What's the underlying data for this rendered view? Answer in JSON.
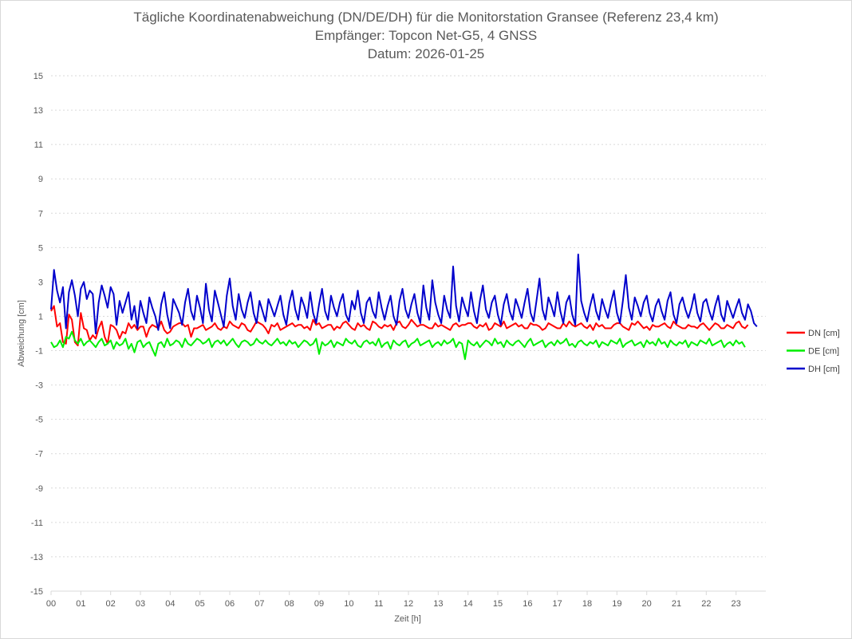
{
  "chart_data": {
    "type": "line",
    "title": "Tägliche Koordinatenabweichung (DN/DE/DH) für die Monitorstation Gransee (Referenz 23,4 km)",
    "subtitle1": "Empfänger: Topcon Net-G5, 4 GNSS",
    "subtitle2": "Datum: 2026-01-25",
    "xlabel": "Zeit [h]",
    "ylabel": "Abweichung [cm]",
    "xlim": [
      0,
      24
    ],
    "ylim": [
      -15,
      15
    ],
    "grid": "horizontal dotted",
    "legend_position": "right",
    "xticks": [
      "00",
      "01",
      "02",
      "03",
      "04",
      "05",
      "06",
      "07",
      "08",
      "09",
      "10",
      "11",
      "12",
      "13",
      "14",
      "15",
      "16",
      "17",
      "18",
      "19",
      "20",
      "21",
      "22",
      "23"
    ],
    "yticks": [
      "15",
      "13",
      "11",
      "9",
      "7",
      "5",
      "3",
      "1",
      "-1",
      "-3",
      "-5",
      "-7",
      "-9",
      "-11",
      "-13",
      "-15"
    ],
    "x_step_h": 0.1,
    "series": [
      {
        "name": "DN [cm]",
        "color": "#ff0000",
        "values": [
          1.3,
          1.6,
          0.4,
          0.6,
          -0.5,
          -0.6,
          1.1,
          0.8,
          -0.5,
          -0.7,
          1.2,
          0.3,
          0.2,
          -0.4,
          -0.1,
          -0.3,
          0.3,
          0.7,
          -0.2,
          -0.6,
          0.5,
          0.4,
          0.2,
          -0.3,
          0.1,
          0.0,
          0.6,
          0.3,
          0.5,
          0.2,
          0.4,
          0.4,
          -0.2,
          0.3,
          0.5,
          0.4,
          0.3,
          0.7,
          0.2,
          0.0,
          0.1,
          0.4,
          0.5,
          0.6,
          0.6,
          0.4,
          0.5,
          -0.2,
          0.3,
          0.3,
          0.4,
          0.5,
          0.2,
          0.3,
          0.4,
          0.6,
          0.3,
          0.2,
          0.4,
          0.3,
          0.7,
          0.5,
          0.4,
          0.3,
          0.6,
          0.5,
          0.2,
          0.1,
          0.4,
          0.7,
          0.6,
          0.5,
          0.3,
          0.0,
          0.5,
          0.4,
          0.6,
          0.2,
          0.3,
          0.4,
          0.5,
          0.6,
          0.4,
          0.5,
          0.5,
          0.3,
          0.4,
          0.2,
          0.8,
          0.5,
          0.6,
          0.3,
          0.4,
          0.5,
          0.5,
          0.2,
          0.4,
          0.3,
          0.6,
          0.7,
          0.5,
          0.3,
          0.2,
          0.6,
          0.4,
          0.5,
          0.3,
          0.2,
          0.7,
          0.6,
          0.4,
          0.3,
          0.5,
          0.4,
          0.5,
          0.2,
          0.6,
          0.7,
          0.4,
          0.3,
          0.5,
          0.8,
          0.6,
          0.4,
          0.5,
          0.5,
          0.4,
          0.3,
          0.3,
          0.6,
          0.4,
          0.5,
          0.4,
          0.3,
          0.2,
          0.5,
          0.6,
          0.4,
          0.5,
          0.5,
          0.6,
          0.6,
          0.4,
          0.3,
          0.5,
          0.4,
          0.6,
          0.2,
          0.3,
          0.6,
          0.5,
          0.4,
          0.7,
          0.3,
          0.4,
          0.5,
          0.6,
          0.4,
          0.5,
          0.3,
          0.3,
          0.6,
          0.5,
          0.5,
          0.4,
          0.2,
          0.3,
          0.6,
          0.5,
          0.4,
          0.3,
          0.3,
          0.6,
          0.4,
          0.7,
          0.5,
          0.4,
          0.5,
          0.6,
          0.4,
          0.3,
          0.5,
          0.2,
          0.6,
          0.4,
          0.5,
          0.3,
          0.3,
          0.3,
          0.5,
          0.6,
          0.6,
          0.4,
          0.3,
          0.2,
          0.6,
          0.5,
          0.7,
          0.5,
          0.3,
          0.4,
          0.2,
          0.5,
          0.4,
          0.4,
          0.5,
          0.6,
          0.4,
          0.3,
          0.7,
          0.5,
          0.4,
          0.3,
          0.3,
          0.5,
          0.4,
          0.4,
          0.3,
          0.5,
          0.6,
          0.4,
          0.2,
          0.4,
          0.6,
          0.5,
          0.3,
          0.3,
          0.5,
          0.4,
          0.3,
          0.6,
          0.7,
          0.4,
          0.3,
          0.5
        ]
      },
      {
        "name": "DE [cm]",
        "color": "#00ee00",
        "values": [
          -0.5,
          -0.8,
          -0.7,
          -0.4,
          -0.8,
          -0.2,
          -0.3,
          0.1,
          -0.4,
          -0.6,
          -0.3,
          -0.7,
          -0.5,
          -0.4,
          -0.6,
          -0.8,
          -0.5,
          -0.3,
          -0.7,
          -0.6,
          -0.4,
          -0.9,
          -0.5,
          -0.7,
          -0.6,
          -0.3,
          -0.9,
          -0.6,
          -1.1,
          -0.5,
          -0.4,
          -0.8,
          -0.6,
          -0.5,
          -0.9,
          -1.3,
          -0.6,
          -0.5,
          -0.8,
          -0.3,
          -0.7,
          -0.6,
          -0.4,
          -0.5,
          -0.8,
          -0.3,
          -0.6,
          -0.7,
          -0.5,
          -0.3,
          -0.4,
          -0.6,
          -0.5,
          -0.3,
          -0.8,
          -0.5,
          -0.4,
          -0.6,
          -0.4,
          -0.7,
          -0.5,
          -0.3,
          -0.6,
          -0.8,
          -0.5,
          -0.4,
          -0.5,
          -0.7,
          -0.6,
          -0.3,
          -0.5,
          -0.6,
          -0.4,
          -0.6,
          -0.7,
          -0.5,
          -0.3,
          -0.6,
          -0.5,
          -0.7,
          -0.4,
          -0.6,
          -0.5,
          -0.8,
          -0.6,
          -0.4,
          -0.5,
          -0.7,
          -0.6,
          -0.3,
          -1.2,
          -0.5,
          -0.7,
          -0.6,
          -0.4,
          -0.8,
          -0.5,
          -0.6,
          -0.7,
          -0.3,
          -0.5,
          -0.6,
          -0.4,
          -0.7,
          -0.8,
          -0.5,
          -0.4,
          -0.6,
          -0.5,
          -0.7,
          -0.3,
          -0.8,
          -0.6,
          -0.5,
          -0.9,
          -0.4,
          -0.6,
          -0.7,
          -0.5,
          -0.4,
          -0.8,
          -0.6,
          -0.5,
          -0.3,
          -0.7,
          -0.6,
          -0.5,
          -0.4,
          -0.8,
          -0.6,
          -0.5,
          -0.7,
          -0.4,
          -0.6,
          -0.5,
          -0.3,
          -0.8,
          -0.5,
          -0.6,
          -1.5,
          -0.4,
          -0.6,
          -0.7,
          -0.5,
          -0.8,
          -0.6,
          -0.4,
          -0.5,
          -0.7,
          -0.3,
          -0.6,
          -0.5,
          -0.8,
          -0.4,
          -0.6,
          -0.7,
          -0.5,
          -0.4,
          -0.6,
          -0.8,
          -0.5,
          -0.3,
          -0.7,
          -0.6,
          -0.5,
          -0.4,
          -0.8,
          -0.6,
          -0.5,
          -0.7,
          -0.4,
          -0.6,
          -0.5,
          -0.3,
          -0.7,
          -0.6,
          -0.8,
          -0.5,
          -0.4,
          -0.6,
          -0.7,
          -0.5,
          -0.6,
          -0.4,
          -0.8,
          -0.5,
          -0.6,
          -0.7,
          -0.4,
          -0.5,
          -0.6,
          -0.3,
          -0.8,
          -0.6,
          -0.5,
          -0.4,
          -0.7,
          -0.6,
          -0.5,
          -0.8,
          -0.4,
          -0.6,
          -0.5,
          -0.7,
          -0.3,
          -0.6,
          -0.5,
          -0.8,
          -0.4,
          -0.6,
          -0.7,
          -0.5,
          -0.6,
          -0.4,
          -0.8,
          -0.5,
          -0.6,
          -0.7,
          -0.4,
          -0.5,
          -0.6,
          -0.3,
          -0.7,
          -0.6,
          -0.5,
          -0.4,
          -0.8,
          -0.6,
          -0.5,
          -0.7,
          -0.4,
          -0.6,
          -0.5,
          -0.8
        ]
      },
      {
        "name": "DH [cm]",
        "color": "#0000cc",
        "values": [
          1.4,
          3.7,
          2.5,
          1.8,
          2.7,
          0.3,
          2.4,
          3.1,
          2.2,
          1.0,
          2.6,
          3.0,
          2.0,
          2.5,
          2.3,
          0.0,
          1.8,
          2.8,
          2.2,
          1.5,
          2.7,
          2.3,
          0.5,
          1.9,
          1.2,
          1.8,
          2.4,
          0.8,
          1.6,
          0.3,
          1.9,
          1.2,
          0.6,
          2.1,
          1.5,
          1.0,
          0.2,
          1.7,
          2.4,
          1.1,
          0.3,
          2.0,
          1.6,
          1.2,
          0.5,
          1.8,
          2.6,
          1.3,
          0.8,
          2.2,
          1.5,
          0.6,
          2.9,
          1.4,
          0.7,
          2.5,
          1.8,
          1.1,
          0.4,
          2.2,
          3.2,
          1.6,
          0.8,
          2.3,
          1.4,
          0.9,
          1.8,
          2.4,
          1.2,
          0.6,
          1.9,
          1.3,
          0.7,
          2.0,
          1.5,
          1.0,
          1.6,
          2.2,
          1.1,
          0.5,
          1.8,
          2.5,
          1.4,
          0.8,
          2.1,
          1.6,
          0.9,
          2.4,
          1.2,
          0.6,
          1.7,
          2.6,
          1.3,
          0.8,
          2.2,
          1.5,
          1.0,
          1.8,
          2.3,
          1.1,
          0.7,
          1.9,
          1.4,
          2.5,
          1.2,
          0.6,
          1.8,
          2.1,
          1.3,
          0.9,
          2.4,
          1.5,
          0.8,
          1.6,
          2.2,
          1.0,
          0.5,
          1.9,
          2.6,
          1.4,
          0.9,
          1.7,
          2.3,
          1.2,
          0.6,
          2.8,
          1.5,
          0.8,
          3.1,
          1.8,
          1.1,
          0.6,
          2.2,
          1.4,
          0.9,
          3.9,
          1.6,
          0.7,
          2.1,
          1.5,
          1.0,
          2.4,
          1.3,
          0.6,
          1.9,
          2.8,
          1.4,
          0.9,
          1.8,
          2.2,
          1.1,
          0.5,
          1.7,
          2.3,
          1.3,
          0.8,
          2.0,
          1.5,
          0.9,
          1.8,
          2.6,
          1.2,
          0.7,
          1.9,
          3.2,
          1.4,
          0.8,
          2.1,
          1.6,
          1.0,
          2.4,
          1.3,
          0.6,
          1.8,
          2.2,
          1.1,
          0.5,
          4.6,
          1.9,
          1.2,
          0.7,
          1.6,
          2.3,
          1.3,
          0.8,
          2.0,
          1.4,
          0.9,
          1.8,
          2.5,
          1.2,
          0.6,
          1.9,
          3.4,
          1.5,
          0.8,
          2.1,
          1.6,
          1.0,
          1.8,
          2.2,
          1.2,
          0.7,
          1.6,
          2.0,
          1.3,
          0.8,
          1.9,
          2.4,
          1.1,
          0.6,
          1.7,
          2.1,
          1.4,
          0.9,
          1.5,
          2.3,
          1.2,
          0.7,
          1.8,
          2.0,
          1.3,
          0.8,
          1.6,
          2.2,
          1.1,
          0.7,
          1.9,
          1.4,
          0.9,
          1.5,
          2.0,
          1.2,
          0.8,
          1.7,
          1.3,
          0.6,
          0.4
        ]
      }
    ]
  }
}
